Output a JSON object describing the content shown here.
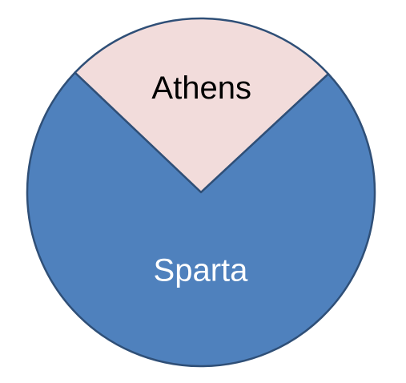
{
  "chart_data": {
    "type": "pie",
    "title": "",
    "legend": "none",
    "start_angle_deg": -46.5,
    "slices": [
      {
        "label": "Athens",
        "value": 0.26,
        "color": "#f2dcdb",
        "label_color": "#000000"
      },
      {
        "label": "Sparta",
        "value": 0.74,
        "color": "#4f81bd",
        "label_color": "#ffffff"
      }
    ]
  }
}
